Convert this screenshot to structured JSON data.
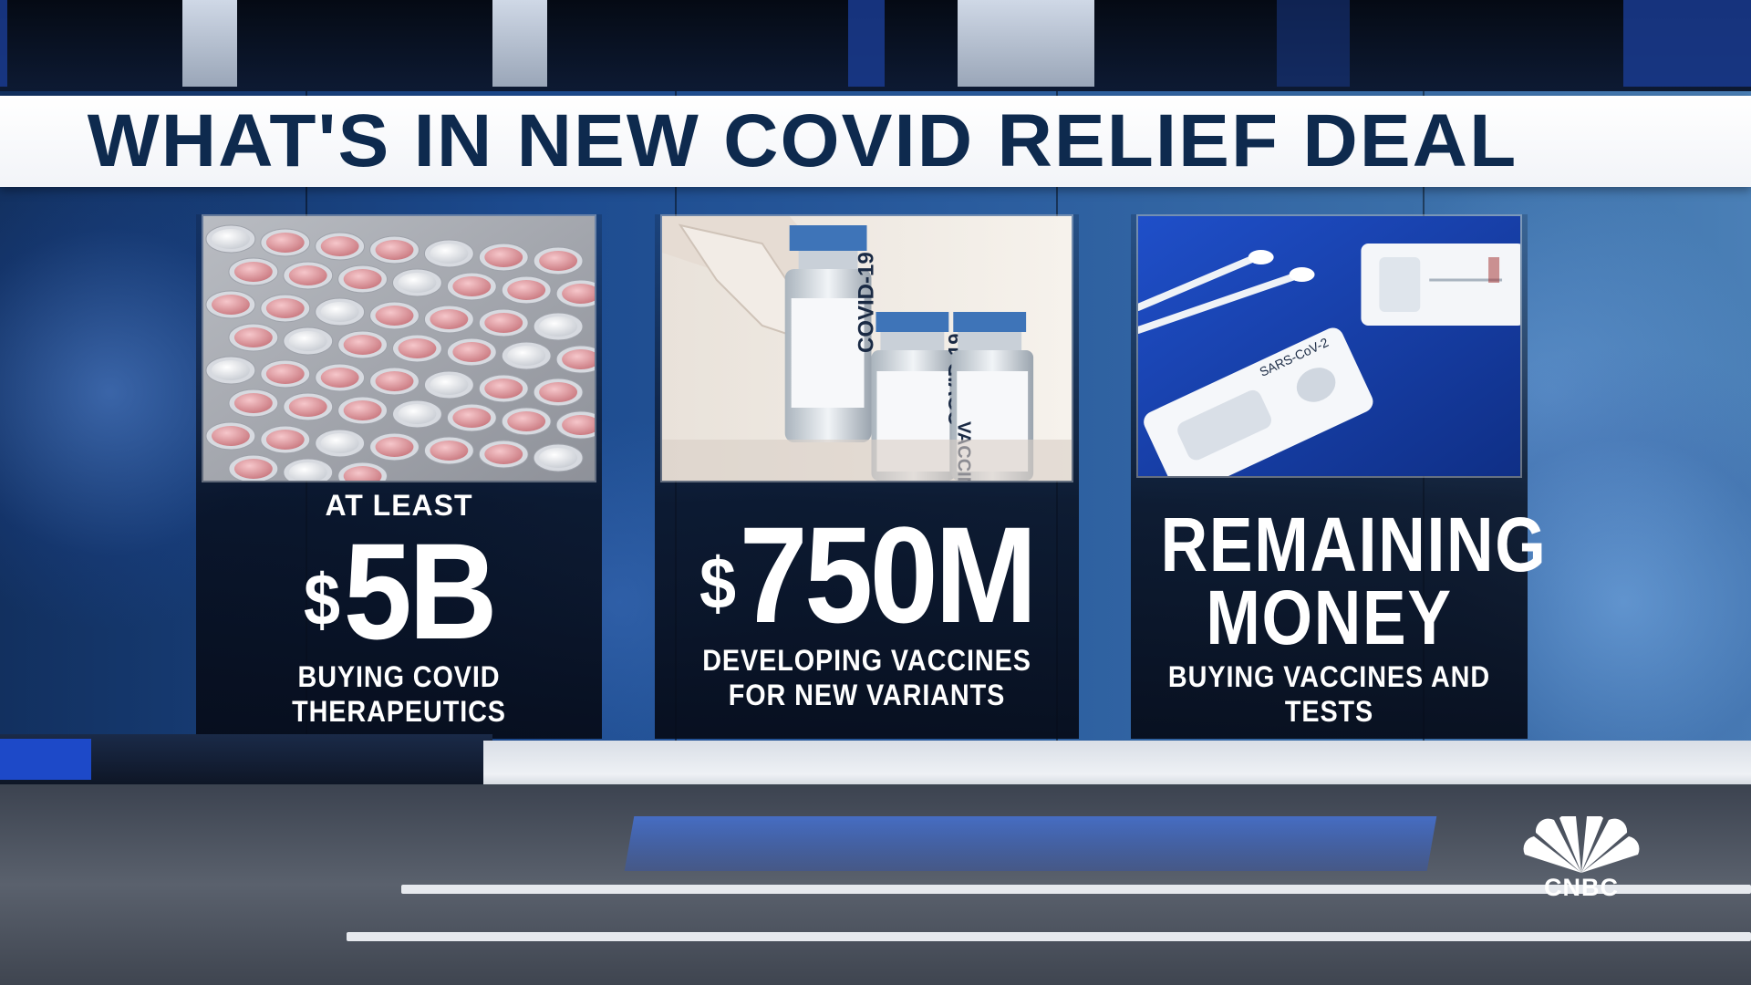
{
  "header": {
    "title": "WHAT'S IN NEW COVID RELIEF DEAL"
  },
  "panels": [
    {
      "image": "pill-blister-pack",
      "prefix": "AT LEAST",
      "currency": "$",
      "amount": "5B",
      "description_line1": "BUYING COVID",
      "description_line2": "THERAPEUTICS"
    },
    {
      "image": "vaccine-vials",
      "currency": "$",
      "amount": "750M",
      "description_line1": "DEVELOPING VACCINES",
      "description_line2": "FOR NEW VARIANTS"
    },
    {
      "image": "covid-test-kit",
      "headline_line1": "REMAINING",
      "headline_line2": "MONEY",
      "description_line1": "BUYING VACCINES AND TESTS"
    }
  ],
  "photo_text": {
    "vial_label": "COVID-19",
    "vial_sub": "VACCINE",
    "test_label": "SARS-CoV-2"
  },
  "logo": {
    "name": "peacock-icon",
    "text": "CNBC"
  },
  "colors": {
    "title_text": "#0e2a4e",
    "title_band": "#ffffff",
    "wall_blue": "#2a5c9e",
    "panel_text": "#ffffff"
  }
}
